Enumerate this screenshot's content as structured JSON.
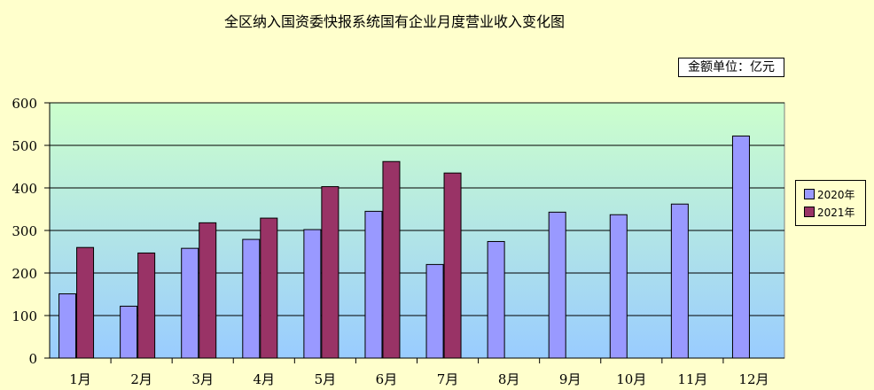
{
  "chart_data": {
    "type": "bar",
    "title": "全区纳入国资委快报系统国有企业月度营业收入变化图",
    "unit_label": "金额单位：亿元",
    "categories": [
      "1月",
      "2月",
      "3月",
      "4月",
      "5月",
      "6月",
      "7月",
      "8月",
      "9月",
      "10月",
      "11月",
      "12月"
    ],
    "series": [
      {
        "name": "2020年",
        "color": "#9999ff",
        "values": [
          151,
          122,
          258,
          279,
          302,
          345,
          220,
          274,
          343,
          337,
          362,
          522
        ]
      },
      {
        "name": "2021年",
        "color": "#993366",
        "values": [
          260,
          247,
          318,
          329,
          403,
          462,
          435,
          null,
          null,
          null,
          null,
          null
        ]
      }
    ],
    "ylim": [
      0,
      600
    ],
    "yticks": [
      0,
      100,
      200,
      300,
      400,
      500,
      600
    ],
    "grid": true,
    "legend_position": "right",
    "plot_gradient": [
      "#ccffcc",
      "#99ccff"
    ]
  }
}
